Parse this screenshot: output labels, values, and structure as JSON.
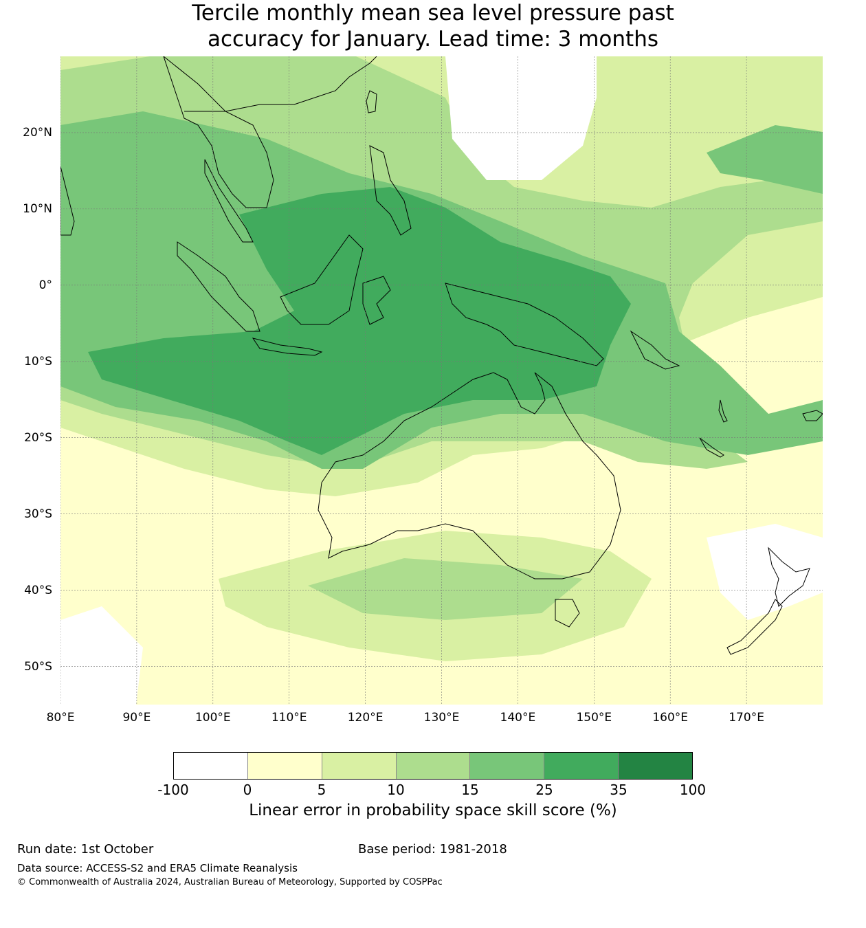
{
  "title_line1": "Tercile monthly mean sea level pressure past",
  "title_line2": "accuracy for January. Lead time: 3 months",
  "map": {
    "extent": {
      "lon_min": 80,
      "lon_max": 180,
      "lat_min": -55,
      "lat_max": 30
    },
    "lat_labels": [
      {
        "lat": 20,
        "text": "20°N"
      },
      {
        "lat": 10,
        "text": "10°N"
      },
      {
        "lat": 0,
        "text": "0°"
      },
      {
        "lat": -10,
        "text": "10°S"
      },
      {
        "lat": -20,
        "text": "20°S"
      },
      {
        "lat": -30,
        "text": "30°S"
      },
      {
        "lat": -40,
        "text": "40°S"
      },
      {
        "lat": -50,
        "text": "50°S"
      }
    ],
    "lon_labels": [
      {
        "lon": 80,
        "text": "80°E"
      },
      {
        "lon": 90,
        "text": "90°E"
      },
      {
        "lon": 100,
        "text": "100°E"
      },
      {
        "lon": 110,
        "text": "110°E"
      },
      {
        "lon": 120,
        "text": "120°E"
      },
      {
        "lon": 130,
        "text": "130°E"
      },
      {
        "lon": 140,
        "text": "140°E"
      },
      {
        "lon": 150,
        "text": "150°E"
      },
      {
        "lon": 160,
        "text": "160°E"
      },
      {
        "lon": 170,
        "text": "170°E"
      }
    ]
  },
  "colorbar": {
    "colors": [
      "#ffffff",
      "#ffffcc",
      "#d9f0a3",
      "#addd8e",
      "#78c679",
      "#41ab5d",
      "#238443"
    ],
    "ticks": [
      "-100",
      "0",
      "5",
      "10",
      "15",
      "25",
      "35",
      "100"
    ],
    "label": "Linear error in probability space skill score (%)"
  },
  "footer": {
    "run_date": "Run date: 1st October",
    "base_period": "Base period: 1981-2018",
    "data_source": "Data source: ACCESS-S2 and ERA5 Climate Reanalysis",
    "copyright": "© Commonwealth of Australia 2024, Australian Bureau of Meteorology, Supported by COSPPac"
  }
}
